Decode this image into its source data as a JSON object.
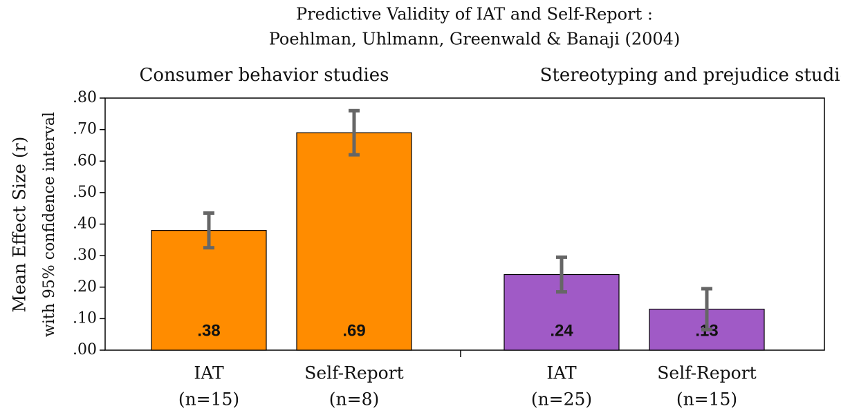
{
  "chart_data": {
    "type": "bar",
    "title": "Predictive Validity of IAT and Self-Report :",
    "subtitle": "Poehlman, Uhlmann, Greenwald & Banaji (2004)",
    "ylabel": [
      "Mean Effect Size (r)",
      "with 95% confidence interval"
    ],
    "ylim": [
      0,
      0.8
    ],
    "yticks": [
      {
        "value": 0,
        "label": ".00"
      },
      {
        "value": 0.1,
        "label": ".10"
      },
      {
        "value": 0.2,
        "label": ".20"
      },
      {
        "value": 0.3,
        "label": ".30"
      },
      {
        "value": 0.4,
        "label": ".40"
      },
      {
        "value": 0.5,
        "label": ".50"
      },
      {
        "value": 0.6,
        "label": ".60"
      },
      {
        "value": 0.7,
        "label": ".70"
      },
      {
        "value": 0.8,
        "label": ".80"
      }
    ],
    "groups": [
      {
        "label": "Consumer behavior studies",
        "color": "#ff8c00",
        "categories": [
          [
            "IAT",
            "(n=15)"
          ],
          [
            "Self-Report",
            "(n=8)"
          ]
        ],
        "values": [
          0.38,
          0.69
        ],
        "value_labels": [
          ".38",
          ".69"
        ],
        "errors": [
          0.055,
          0.07
        ]
      },
      {
        "label": "Stereotyping and prejudice studies",
        "color": "#a05ac6",
        "categories": [
          [
            "IAT",
            "(n=25)"
          ],
          [
            "Self-Report",
            "(n=15)"
          ]
        ],
        "values": [
          0.24,
          0.13
        ],
        "value_labels": [
          ".24",
          ".13"
        ],
        "errors": [
          0.055,
          0.065
        ]
      }
    ]
  }
}
